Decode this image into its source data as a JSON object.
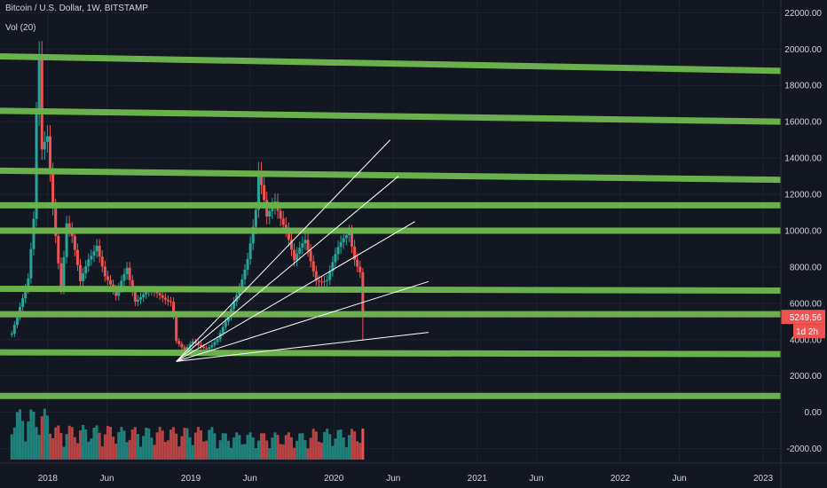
{
  "header": {
    "symbol_title": "Bitcoin / U.S. Dollar, 1W, BITSTAMP",
    "volume_label": "Vol (20)"
  },
  "price_scale": {
    "ticks": [
      "22000.00",
      "20000.00",
      "18000.00",
      "16000.00",
      "14000.00",
      "12000.00",
      "10000.00",
      "8000.00",
      "6000.00",
      "4000.00",
      "2000.00",
      "0.00",
      "-2000.00"
    ]
  },
  "time_scale": {
    "ticks": [
      "2018",
      "Jun",
      "2019",
      "Jun",
      "2020",
      "Jun",
      "2021",
      "Jun",
      "2022",
      "Jun",
      "2023"
    ]
  },
  "current_price": {
    "value": "5249.56",
    "countdown": "1d 2h"
  },
  "colors": {
    "background": "#131722",
    "up": "#26a69a",
    "down": "#ef5350",
    "level_line": "#6ab04c",
    "text": "#d1d4dc",
    "trendline": "#ffffff"
  },
  "chart_data": {
    "type": "candlestick",
    "timeframe": "1W",
    "title": "Bitcoin / U.S. Dollar, 1W, BITSTAMP",
    "ylim": [
      -2800,
      22700
    ],
    "candles": [
      {
        "t": "2017-10-01",
        "c": 4300
      },
      {
        "t": "2017-10-22",
        "c": 6000
      },
      {
        "t": "2017-11-12",
        "c": 7500
      },
      {
        "t": "2017-11-26",
        "c": 10500
      },
      {
        "t": "2017-12-03",
        "c": 16000
      },
      {
        "t": "2017-12-10",
        "c": 19000
      },
      {
        "t": "2017-12-17",
        "c": 14000
      },
      {
        "t": "2017-12-31",
        "c": 15000
      },
      {
        "t": "2018-01-14",
        "c": 11500
      },
      {
        "t": "2018-01-28",
        "c": 8500
      },
      {
        "t": "2018-02-04",
        "c": 7000
      },
      {
        "t": "2018-02-18",
        "c": 10500
      },
      {
        "t": "2018-03-04",
        "c": 9500
      },
      {
        "t": "2018-03-25",
        "c": 7000
      },
      {
        "t": "2018-04-15",
        "c": 8500
      },
      {
        "t": "2018-05-06",
        "c": 9500
      },
      {
        "t": "2018-05-27",
        "c": 7500
      },
      {
        "t": "2018-06-24",
        "c": 6200
      },
      {
        "t": "2018-07-22",
        "c": 8100
      },
      {
        "t": "2018-08-12",
        "c": 6300
      },
      {
        "t": "2018-09-09",
        "c": 6500
      },
      {
        "t": "2018-10-14",
        "c": 6400
      },
      {
        "t": "2018-11-11",
        "c": 6300
      },
      {
        "t": "2018-11-18",
        "c": 5500
      },
      {
        "t": "2018-11-25",
        "c": 4000
      },
      {
        "t": "2018-12-16",
        "c": 3300
      },
      {
        "t": "2019-01-06",
        "c": 3800
      },
      {
        "t": "2019-02-10",
        "c": 3600
      },
      {
        "t": "2019-03-10",
        "c": 4000
      },
      {
        "t": "2019-04-07",
        "c": 5100
      },
      {
        "t": "2019-05-05",
        "c": 7000
      },
      {
        "t": "2019-05-26",
        "c": 8700
      },
      {
        "t": "2019-06-16",
        "c": 11000
      },
      {
        "t": "2019-06-23",
        "c": 12900
      },
      {
        "t": "2019-07-14",
        "c": 10500
      },
      {
        "t": "2019-08-04",
        "c": 11800
      },
      {
        "t": "2019-09-01",
        "c": 10300
      },
      {
        "t": "2019-09-22",
        "c": 8200
      },
      {
        "t": "2019-10-20",
        "c": 9300
      },
      {
        "t": "2019-11-17",
        "c": 7500
      },
      {
        "t": "2019-12-15",
        "c": 7300
      },
      {
        "t": "2020-01-12",
        "c": 8800
      },
      {
        "t": "2020-02-09",
        "c": 10100
      },
      {
        "t": "2020-02-23",
        "c": 8700
      },
      {
        "t": "2020-03-08",
        "c": 7900
      },
      {
        "t": "2020-03-15",
        "c": 5250
      }
    ],
    "volume": [
      {
        "t": "2017-12-10",
        "v": 2800
      },
      {
        "t": "2018-02-04",
        "v": 1900
      },
      {
        "t": "2018-11-18",
        "v": 1800
      },
      {
        "t": "2019-06-23",
        "v": 1500
      },
      {
        "t": "2020-03-15",
        "v": 1700
      }
    ],
    "horizontal_levels": [
      {
        "x1": "2017-09-01",
        "y1": 19600,
        "x2": "2023-02-15",
        "y2": 18800
      },
      {
        "x1": "2017-09-01",
        "y1": 16600,
        "x2": "2023-02-15",
        "y2": 16000
      },
      {
        "x1": "2017-09-01",
        "y1": 13300,
        "x2": "2023-02-15",
        "y2": 12800
      },
      {
        "x1": "2017-09-01",
        "y1": 11400,
        "x2": "2023-02-15",
        "y2": 11400
      },
      {
        "x1": "2017-09-01",
        "y1": 10000,
        "x2": "2023-02-15",
        "y2": 10000
      },
      {
        "x1": "2017-09-01",
        "y1": 6800,
        "x2": "2023-02-15",
        "y2": 6700
      },
      {
        "x1": "2017-09-01",
        "y1": 5400,
        "x2": "2023-02-15",
        "y2": 5400
      },
      {
        "x1": "2017-09-01",
        "y1": 3300,
        "x2": "2023-02-15",
        "y2": 3200
      },
      {
        "x1": "2017-09-01",
        "y1": 900,
        "x2": "2023-02-15",
        "y2": 900
      }
    ],
    "trendlines": [
      {
        "x1": "2018-11-25",
        "y1": 2800,
        "x2": "2020-05-24",
        "y2": 15000
      },
      {
        "x1": "2018-11-25",
        "y1": 2800,
        "x2": "2020-06-14",
        "y2": 13000
      },
      {
        "x1": "2018-11-25",
        "y1": 2800,
        "x2": "2020-07-26",
        "y2": 10500
      },
      {
        "x1": "2018-11-25",
        "y1": 2800,
        "x2": "2020-08-30",
        "y2": 7200
      },
      {
        "x1": "2018-11-25",
        "y1": 2800,
        "x2": "2020-08-30",
        "y2": 4400
      }
    ]
  }
}
